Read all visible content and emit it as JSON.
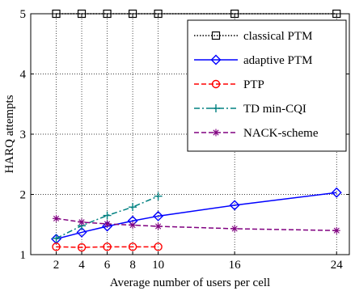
{
  "chart_data": {
    "type": "line",
    "title": "",
    "xlabel": "Average number of users per cell",
    "ylabel": "HARQ attempts",
    "xlim": [
      0,
      25
    ],
    "ylim": [
      1,
      5
    ],
    "x_ticks": [
      2,
      4,
      6,
      8,
      10,
      16,
      24
    ],
    "y_ticks": [
      1,
      2,
      3,
      4,
      5
    ],
    "grid": true,
    "legend_position": "top-right",
    "series": [
      {
        "name": "classical PTM",
        "color": "#000000",
        "dash": "dotted",
        "marker": "square",
        "x": [
          2,
          4,
          6,
          8,
          10,
          16,
          24
        ],
        "y": [
          5,
          5,
          5,
          5,
          5,
          5,
          5
        ]
      },
      {
        "name": "adaptive PTM",
        "color": "#0000ff",
        "dash": "solid",
        "marker": "diamond",
        "x": [
          2,
          4,
          6,
          8,
          10,
          16,
          24
        ],
        "y": [
          1.26,
          1.37,
          1.47,
          1.56,
          1.64,
          1.82,
          2.03
        ]
      },
      {
        "name": "PTP",
        "color": "#ff0000",
        "dash": "dashed",
        "marker": "circle",
        "x": [
          2,
          4,
          6,
          8,
          10
        ],
        "y": [
          1.13,
          1.12,
          1.13,
          1.13,
          1.13
        ]
      },
      {
        "name": "TD min-CQI",
        "color": "#008080",
        "dash": "dashdot",
        "marker": "plus",
        "x": [
          2,
          4,
          6,
          8,
          10
        ],
        "y": [
          1.27,
          1.48,
          1.65,
          1.79,
          1.97
        ]
      },
      {
        "name": "NACK-scheme",
        "color": "#800080",
        "dash": "dashed",
        "marker": "star",
        "x": [
          2,
          4,
          6,
          8,
          10,
          16,
          24
        ],
        "y": [
          1.6,
          1.54,
          1.51,
          1.49,
          1.47,
          1.43,
          1.4
        ]
      }
    ]
  }
}
